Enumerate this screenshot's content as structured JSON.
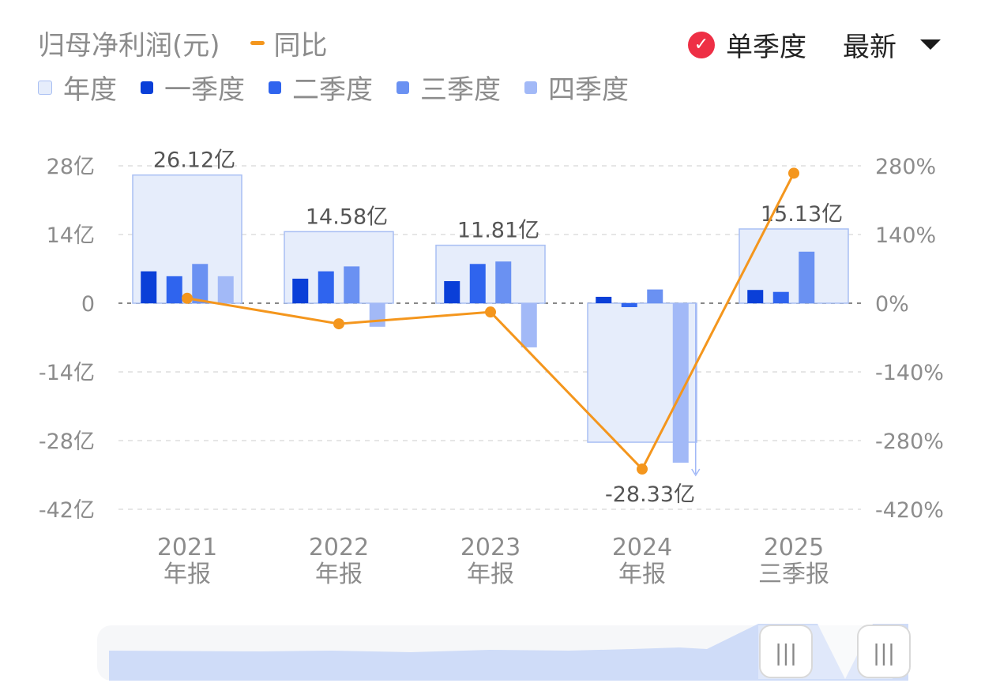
{
  "header": {
    "title": "归母净利润(元)",
    "yoy_label": "同比",
    "mode_label": "单季度",
    "sort_label": "最新"
  },
  "legend": [
    {
      "label": "年度",
      "color": "#e6edfb",
      "border": "#a9bff3"
    },
    {
      "label": "一季度",
      "color": "#0a3fd8"
    },
    {
      "label": "二季度",
      "color": "#2f64ee"
    },
    {
      "label": "三季度",
      "color": "#6a91f2"
    },
    {
      "label": "四季度",
      "color": "#a2b9f7"
    }
  ],
  "colors": {
    "line": "#f4961d",
    "check": "#ee2f45",
    "grid": "#dddddd",
    "zero": "#888888",
    "annual_fill": "#e6edfb",
    "annual_stroke": "#a9bff3",
    "slider_fill": "#cfdcf8"
  },
  "chart_data": {
    "type": "bar",
    "categories": [
      [
        "2021",
        "年报"
      ],
      [
        "2022",
        "年报"
      ],
      [
        "2023",
        "年报"
      ],
      [
        "2024",
        "年报"
      ],
      [
        "2025",
        "三季报"
      ]
    ],
    "annual": {
      "values": [
        26.12,
        14.58,
        11.81,
        -28.33,
        15.13
      ],
      "labels": [
        "26.12亿",
        "14.58亿",
        "11.81亿",
        "-28.33亿",
        "15.13亿"
      ]
    },
    "series": [
      {
        "name": "一季度",
        "values": [
          6.5,
          5.0,
          4.5,
          1.3,
          2.7
        ]
      },
      {
        "name": "二季度",
        "values": [
          5.5,
          6.5,
          8.0,
          -0.8,
          2.3
        ]
      },
      {
        "name": "三季度",
        "values": [
          8.0,
          7.5,
          8.5,
          2.8,
          10.5
        ]
      },
      {
        "name": "四季度",
        "values": [
          5.5,
          -4.8,
          -9.0,
          -32.5,
          null
        ]
      }
    ],
    "yoy": {
      "name": "同比",
      "values": [
        10,
        -42,
        -18,
        -338,
        265
      ]
    },
    "y_left": {
      "min": -42,
      "max": 28,
      "ticks": [
        28,
        14,
        0,
        -14,
        -28,
        -42
      ],
      "tick_labels": [
        "28亿",
        "14亿",
        "0",
        "-14亿",
        "-28亿",
        "-42亿"
      ]
    },
    "y_right": {
      "min": -420,
      "max": 280,
      "ticks": [
        280,
        140,
        0,
        -140,
        -280,
        -420
      ],
      "tick_labels": [
        "280%",
        "140%",
        "0%",
        "-140%",
        "-280%",
        "-420%"
      ]
    },
    "grid": true
  },
  "slider": {
    "handle_glyph": "|||"
  }
}
